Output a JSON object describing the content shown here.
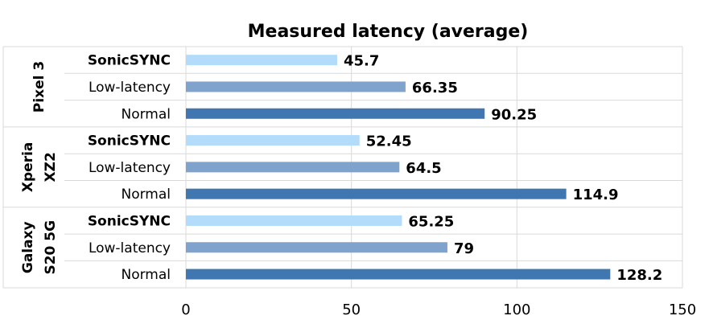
{
  "chart_data": {
    "type": "bar",
    "orientation": "horizontal",
    "title": "Measured latency (average)",
    "xlim": [
      0,
      150
    ],
    "xticks": [
      0,
      50,
      100,
      150
    ],
    "grid": true,
    "groups": [
      {
        "label_lines": [
          "Pixel 3"
        ],
        "bars": [
          {
            "label": "SonicSYNC",
            "value": 45.7,
            "value_label": "45.7",
            "highlight": true
          },
          {
            "label": "Low-latency",
            "value": 66.35,
            "value_label": "66.35",
            "highlight": false
          },
          {
            "label": "Normal",
            "value": 90.25,
            "value_label": "90.25",
            "highlight": false
          }
        ]
      },
      {
        "label_lines": [
          "Xperia",
          "XZ2"
        ],
        "bars": [
          {
            "label": "SonicSYNC",
            "value": 52.45,
            "value_label": "52.45",
            "highlight": true
          },
          {
            "label": "Low-latency",
            "value": 64.5,
            "value_label": "64.5",
            "highlight": false
          },
          {
            "label": "Normal",
            "value": 114.9,
            "value_label": "114.9",
            "highlight": false
          }
        ]
      },
      {
        "label_lines": [
          "Galaxy",
          "S20 5G"
        ],
        "bars": [
          {
            "label": "SonicSYNC",
            "value": 65.25,
            "value_label": "65.25",
            "highlight": true
          },
          {
            "label": "Low-latency",
            "value": 79,
            "value_label": "79",
            "highlight": false
          },
          {
            "label": "Normal",
            "value": 128.2,
            "value_label": "128.2",
            "highlight": false
          }
        ]
      }
    ],
    "colors": {
      "SonicSYNC": "#b3dcfa",
      "Low-latency": "#7fa3cc",
      "Normal": "#4177b0",
      "highlight_value": "#ff0000",
      "value": "#000000"
    }
  }
}
